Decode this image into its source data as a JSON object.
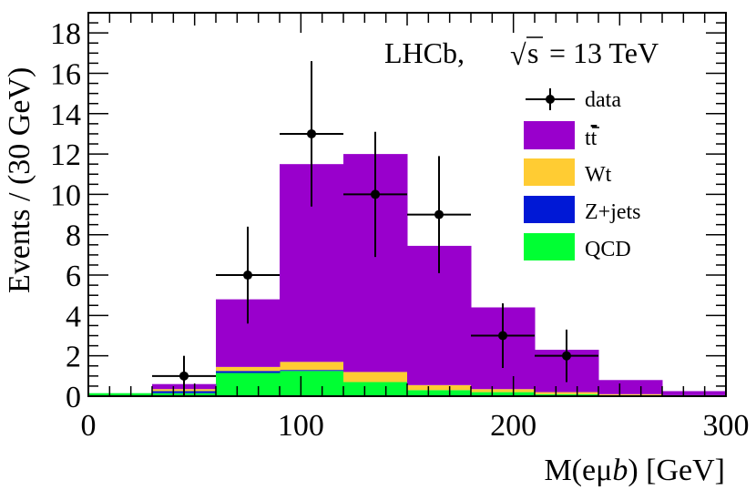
{
  "chart_data": {
    "type": "bar",
    "subtype": "stacked-histogram-with-data-points",
    "title": "",
    "plot_label": {
      "experiment": "LHCb,",
      "sqrt": "√",
      "s": "s",
      "energy": " = 13 TeV"
    },
    "xlabel": {
      "prefix": "M(eμ",
      "italic": "b",
      "suffix": ") [GeV]"
    },
    "ylabel": "Events / (30 GeV)",
    "xlim": [
      0,
      300
    ],
    "ylim": [
      0,
      19
    ],
    "xticks": [
      0,
      100,
      200,
      300
    ],
    "xtick_labels": [
      "0",
      "100",
      "200",
      "300"
    ],
    "yticks": [
      0,
      2,
      4,
      6,
      8,
      10,
      12,
      14,
      16,
      18
    ],
    "ytick_labels": [
      "0",
      "2",
      "4",
      "6",
      "8",
      "10",
      "12",
      "14",
      "16",
      "18"
    ],
    "bin_edges": [
      0,
      30,
      60,
      90,
      120,
      150,
      180,
      210,
      240,
      270,
      300
    ],
    "series": [
      {
        "name": "QCD",
        "color": "#00ff33",
        "values": [
          0.15,
          0.15,
          1.15,
          1.25,
          0.7,
          0.3,
          0.2,
          0.1,
          0.05,
          0.05
        ]
      },
      {
        "name": "Z+jets",
        "color": "#0018d6",
        "values": [
          0.0,
          0.1,
          0.1,
          0.05,
          0.0,
          0.0,
          0.0,
          0.0,
          0.0,
          0.0
        ]
      },
      {
        "name": "Wt",
        "color": "#ffcc33",
        "values": [
          0.0,
          0.1,
          0.2,
          0.4,
          0.5,
          0.25,
          0.15,
          0.1,
          0.05,
          0.0
        ]
      },
      {
        "name": "t̅t",
        "legend_main": "t",
        "legend_bar": "t",
        "color": "#9900cc",
        "values": [
          0.0,
          0.25,
          3.35,
          9.8,
          10.8,
          6.9,
          4.05,
          2.1,
          0.7,
          0.2
        ]
      }
    ],
    "data_points": {
      "name": "data",
      "x": [
        45,
        75,
        105,
        135,
        165,
        195,
        225
      ],
      "y": [
        1,
        6,
        13,
        10,
        9,
        3,
        2
      ],
      "yerr_low": [
        1.0,
        2.4,
        3.6,
        3.1,
        2.9,
        1.6,
        1.3
      ],
      "yerr_high": [
        1.0,
        2.4,
        3.6,
        3.1,
        2.9,
        1.6,
        1.3
      ],
      "xerr": 15
    },
    "legend": {
      "placement": "right-upper",
      "entries": [
        {
          "label": "data",
          "kind": "marker"
        },
        {
          "label": "t",
          "overline": "t",
          "kind": "box",
          "color": "#9900cc"
        },
        {
          "label": "Wt",
          "kind": "box",
          "color": "#ffcc33"
        },
        {
          "label": "Z+jets",
          "kind": "box",
          "color": "#0018d6"
        },
        {
          "label": "QCD",
          "kind": "box",
          "color": "#00ff33"
        }
      ]
    }
  }
}
